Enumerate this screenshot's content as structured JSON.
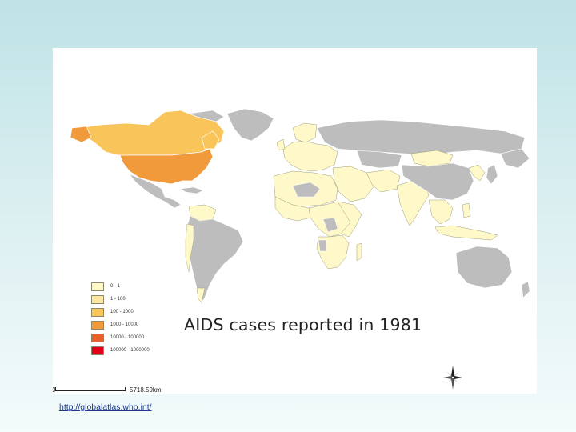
{
  "map": {
    "title": "AIDS cases reported in  1981",
    "legend": [
      {
        "label": "0 - 1",
        "color": "#fff9c9"
      },
      {
        "label": "1 - 100",
        "color": "#fde7a0"
      },
      {
        "label": "100 - 1000",
        "color": "#f9c45a"
      },
      {
        "label": "1000 - 10000",
        "color": "#f19a3c"
      },
      {
        "label": "10000 - 100000",
        "color": "#e8602a"
      },
      {
        "label": "100000 - 1000000",
        "color": "#e3001b"
      }
    ],
    "no_data_color": "#bdbdbd",
    "scale": {
      "start": "0",
      "end": "5718.59km"
    }
  },
  "footer": {
    "source_url": "http://globalatlas.who.int/"
  }
}
